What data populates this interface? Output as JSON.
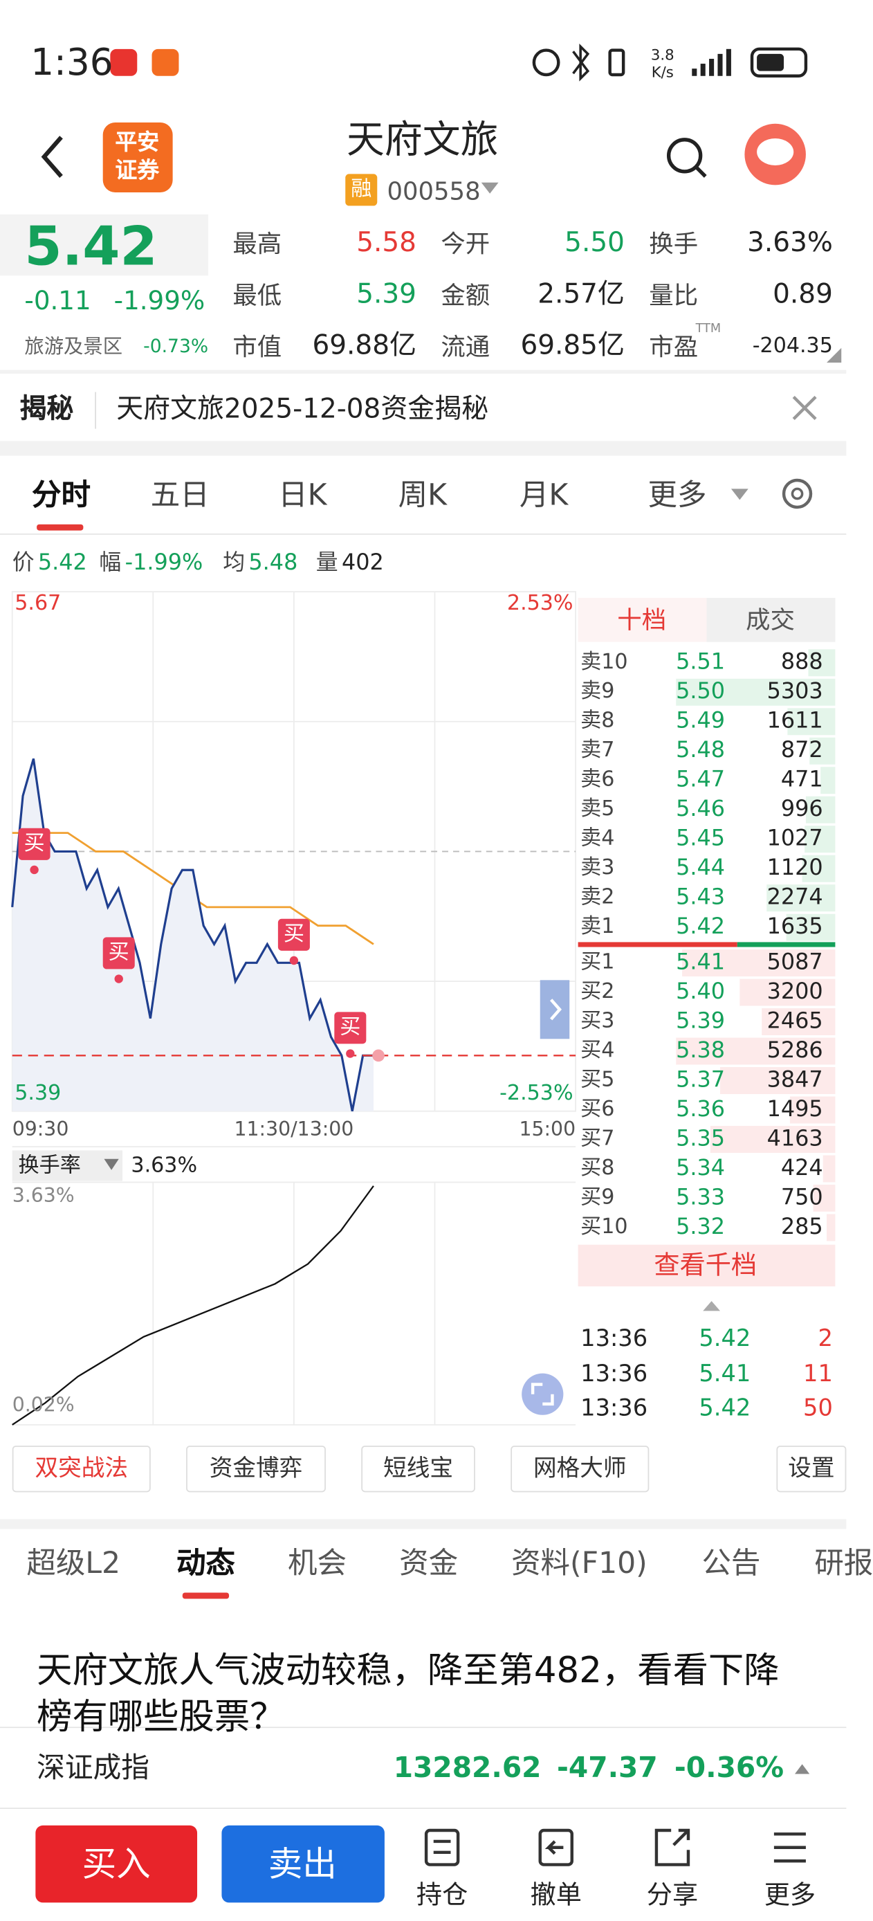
{
  "status_bar": {
    "time": "1:36",
    "net_speed": "3.8",
    "net_unit": "K/s"
  },
  "header": {
    "logo": [
      "平安",
      "证券"
    ],
    "title": "天府文旅",
    "tag": "融",
    "code": "000558"
  },
  "quote": {
    "price": "5.42",
    "change": "-0.11",
    "change_pct": "-1.99%",
    "sector": "旅游及景区",
    "sector_pct": "-0.73%",
    "color": "#14a05a"
  },
  "stats": [
    {
      "label": "最高",
      "value": "5.58",
      "color": "#e53935"
    },
    {
      "label": "今开",
      "value": "5.50",
      "color": "#14a05a"
    },
    {
      "label": "换手",
      "value": "3.63%",
      "color": "#222222"
    },
    {
      "label": "最低",
      "value": "5.39",
      "color": "#14a05a"
    },
    {
      "label": "金额",
      "value": "2.57亿",
      "color": "#222222"
    },
    {
      "label": "量比",
      "value": "0.89",
      "color": "#222222"
    },
    {
      "label": "市值",
      "value": "69.88亿",
      "color": "#222222"
    },
    {
      "label": "流通",
      "value": "69.85亿",
      "color": "#222222"
    },
    {
      "label": "市盈",
      "superscript": "TTM",
      "value": "-204.35",
      "color": "#222222"
    }
  ],
  "reveal": {
    "label": "揭秘",
    "text": "天府文旅2025-12-08资金揭秘"
  },
  "chart_tabs": [
    "分时",
    "五日",
    "日K",
    "周K",
    "月K",
    "更多"
  ],
  "info_line": [
    {
      "label": "价",
      "value": "5.42"
    },
    {
      "label": "幅",
      "value": "-1.99%"
    },
    {
      "label": "均",
      "value": "5.48"
    },
    {
      "label": "量",
      "value": "402"
    }
  ],
  "intraday": {
    "type": "line",
    "y_max_label": "5.67",
    "y_min_label": "5.39",
    "pct_max_label": "2.53%",
    "pct_min_label": "-2.53%",
    "ylim": [
      5.39,
      5.67
    ],
    "x_labels": [
      "09:30",
      "11:30/13:00",
      "15:00"
    ],
    "price": [
      5.5,
      5.56,
      5.58,
      5.54,
      5.53,
      5.53,
      5.53,
      5.51,
      5.52,
      5.5,
      5.51,
      5.49,
      5.47,
      5.44,
      5.48,
      5.51,
      5.52,
      5.52,
      5.49,
      5.48,
      5.49,
      5.46,
      5.47,
      5.47,
      5.48,
      5.47,
      5.47,
      5.47,
      5.44,
      5.45,
      5.43,
      5.42,
      5.39,
      5.42,
      5.42
    ],
    "average": [
      5.54,
      5.54,
      5.54,
      5.53,
      5.53,
      5.52,
      5.51,
      5.5,
      5.5,
      5.5,
      5.5,
      5.49,
      5.49,
      5.48
    ],
    "price_color": "#1f3f8f",
    "average_color": "#f0a030",
    "buy_signals": [
      "买",
      "买",
      "买",
      "买"
    ]
  },
  "turnover": {
    "label": "换手率",
    "value": "3.63%",
    "max_label": "3.63%",
    "min_label": "0.02%",
    "ylim": [
      0.02,
      3.63
    ],
    "values": [
      0.02,
      0.35,
      0.75,
      1.05,
      1.35,
      1.55,
      1.75,
      1.95,
      2.15,
      2.45,
      2.95,
      3.63
    ]
  },
  "order_book": {
    "tabs": [
      "十档",
      "成交"
    ],
    "asks": [
      {
        "label": "卖10",
        "price": "5.51",
        "volume": 888
      },
      {
        "label": "卖9",
        "price": "5.50",
        "volume": 5303,
        "dot": "#14a05a"
      },
      {
        "label": "卖8",
        "price": "5.49",
        "volume": 1611
      },
      {
        "label": "卖7",
        "price": "5.48",
        "volume": 872
      },
      {
        "label": "卖6",
        "price": "5.47",
        "volume": 471
      },
      {
        "label": "卖5",
        "price": "5.46",
        "volume": 996
      },
      {
        "label": "卖4",
        "price": "5.45",
        "volume": 1027
      },
      {
        "label": "卖3",
        "price": "5.44",
        "volume": 1120
      },
      {
        "label": "卖2",
        "price": "5.43",
        "volume": 2274
      },
      {
        "label": "卖1",
        "price": "5.42",
        "volume": 1635,
        "dot": "#14a05a"
      }
    ],
    "bids": [
      {
        "label": "买1",
        "price": "5.41",
        "volume": 5087,
        "dot": "#e53935"
      },
      {
        "label": "买2",
        "price": "5.40",
        "volume": 3200
      },
      {
        "label": "买3",
        "price": "5.39",
        "volume": 2465
      },
      {
        "label": "买4",
        "price": "5.38",
        "volume": 5286
      },
      {
        "label": "买5",
        "price": "5.37",
        "volume": 3847,
        "dot": "#e53935"
      },
      {
        "label": "买6",
        "price": "5.36",
        "volume": 1495
      },
      {
        "label": "买7",
        "price": "5.35",
        "volume": 4163,
        "dot": "#e53935"
      },
      {
        "label": "买8",
        "price": "5.34",
        "volume": 424
      },
      {
        "label": "买9",
        "price": "5.33",
        "volume": 750
      },
      {
        "label": "买10",
        "price": "5.32",
        "volume": 285
      }
    ],
    "more": "查看千档"
  },
  "trades": [
    {
      "time": "13:36",
      "price": "5.42",
      "volume": 2
    },
    {
      "time": "13:36",
      "price": "5.41",
      "volume": 11
    },
    {
      "time": "13:36",
      "price": "5.42",
      "volume": 50
    }
  ],
  "tools": [
    "双突战法",
    "资金博弈",
    "短线宝",
    "网格大师",
    "设置"
  ],
  "content_tabs": [
    "超级L2",
    "动态",
    "机会",
    "资金",
    "资料(F10)",
    "公告",
    "研报"
  ],
  "news": {
    "headline": "天府文旅人气波动较稳，降至第482，看看下降榜有哪些股票？"
  },
  "index": {
    "name": "深证成指",
    "value": "13282.62",
    "change": "-47.37",
    "change_pct": "-0.36%"
  },
  "bottom_bar": {
    "buy": "买入",
    "sell": "卖出",
    "actions": [
      "持仓",
      "撤单",
      "分享",
      "更多"
    ]
  }
}
